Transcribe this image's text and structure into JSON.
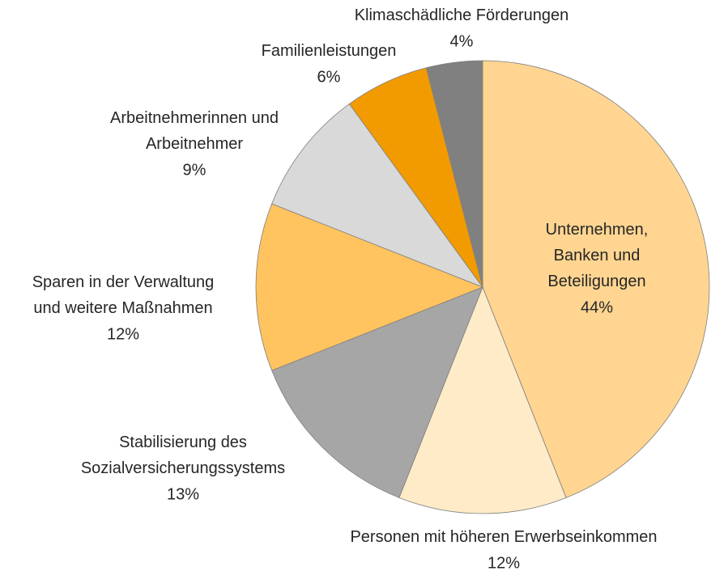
{
  "chart_data": {
    "type": "pie",
    "categories": [
      "Unternehmen,\nBanken und\nBeteiligungen",
      "Personen mit höheren Erwerbseinkommen",
      "Stabilisierung des\nSozialversicherungssystems",
      "Sparen in der Verwaltung\nund weitere Maßnahmen",
      "Arbeitnehmerinnen und\nArbeitnehmer",
      "Familienleistungen",
      "Klimaschädliche Förderungen"
    ],
    "values": [
      44,
      12,
      13,
      12,
      9,
      6,
      4
    ],
    "value_labels": [
      "44%",
      "12%",
      "13%",
      "12%",
      "9%",
      "6%",
      "4%"
    ],
    "colors": [
      "#FFD591",
      "#FFEBC8",
      "#A6A6A6",
      "#FFC35F",
      "#D9D9D9",
      "#F29B00",
      "#808080"
    ]
  }
}
